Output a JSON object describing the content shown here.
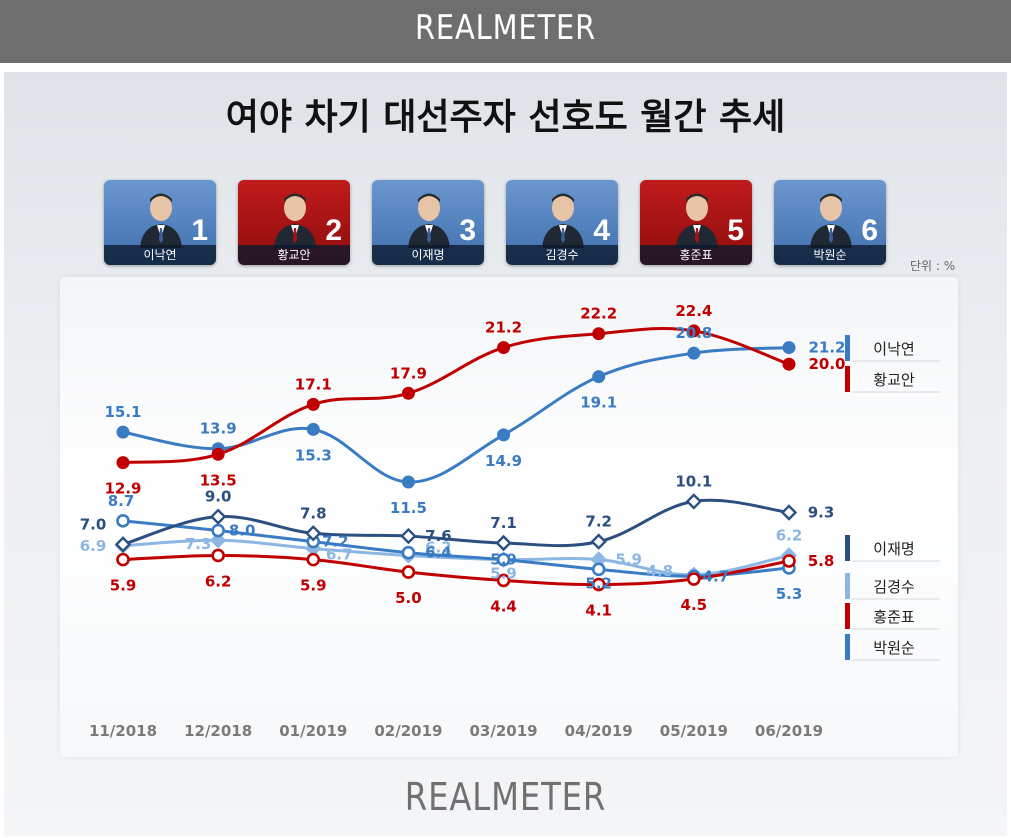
{
  "header": {
    "brand": "REALMETER"
  },
  "footer": {
    "brand": "REALMETER"
  },
  "candidates": [
    {
      "rank": "1",
      "name": "이낙연",
      "color": "blue"
    },
    {
      "rank": "2",
      "name": "황교안",
      "color": "red"
    },
    {
      "rank": "3",
      "name": "이재명",
      "color": "blue"
    },
    {
      "rank": "4",
      "name": "김경수",
      "color": "blue"
    },
    {
      "rank": "5",
      "name": "홍준표",
      "color": "red"
    },
    {
      "rank": "6",
      "name": "박원순",
      "color": "blue"
    }
  ],
  "chart_data": {
    "type": "line",
    "title": "여야 차기 대선주자 선호도 월간 추세",
    "unit_label": "단위 : %",
    "categories": [
      "11/2018",
      "12/2018",
      "01/2019",
      "02/2019",
      "03/2019",
      "04/2019",
      "05/2019",
      "06/2019"
    ],
    "series": [
      {
        "name": "이낙연",
        "values": [
          15.1,
          13.9,
          15.3,
          11.5,
          14.9,
          19.1,
          20.8,
          21.2
        ],
        "color": "#3a7cc4",
        "marker": "dot"
      },
      {
        "name": "황교안",
        "values": [
          12.9,
          13.5,
          17.1,
          17.9,
          21.2,
          22.2,
          22.4,
          20.0
        ],
        "color": "#c00000",
        "marker": "dot"
      },
      {
        "name": "이재명",
        "values": [
          7.0,
          9.0,
          7.8,
          7.6,
          7.1,
          7.2,
          10.1,
          9.3
        ],
        "color": "#2b4f80",
        "marker": "diamond"
      },
      {
        "name": "김경수",
        "values": [
          6.9,
          7.3,
          6.7,
          6.2,
          5.9,
          5.9,
          4.8,
          6.2
        ],
        "color": "#8db7e3",
        "marker": "diamond"
      },
      {
        "name": "홍준표",
        "values": [
          5.9,
          6.2,
          5.9,
          5.0,
          4.4,
          4.1,
          4.5,
          5.8
        ],
        "color": "#c00000",
        "marker": "ring"
      },
      {
        "name": "박원순",
        "values": [
          8.7,
          8.0,
          7.2,
          6.4,
          5.9,
          5.2,
          4.7,
          5.3
        ],
        "color": "#3a7cc4",
        "marker": "ring"
      }
    ],
    "labels": [
      [
        "15.1",
        "13.9",
        "15.3",
        "11.5",
        "14.9",
        "19.1",
        "20.8",
        "21.2"
      ],
      [
        "12.9",
        "13.5",
        "17.1",
        "17.9",
        "21.2",
        "22.2",
        "22.4",
        "20.0"
      ],
      [
        "7.0",
        "9.0",
        "7.8",
        "7.6",
        "7.1",
        "7.2",
        "10.1",
        "9.3"
      ],
      [
        "6.9",
        "7.3",
        "6.7",
        "6.2",
        "5.9",
        "5.9",
        "4.8",
        "6.2"
      ],
      [
        "5.9",
        "6.2",
        "5.9",
        "5.0",
        "4.4",
        "4.1",
        "4.5",
        "5.8"
      ],
      [
        "8.7",
        "8.0",
        "7.2",
        "6.4",
        "5.9",
        "5.2",
        "4.7",
        "5.3"
      ]
    ],
    "legend_position": "right",
    "grid": false
  }
}
